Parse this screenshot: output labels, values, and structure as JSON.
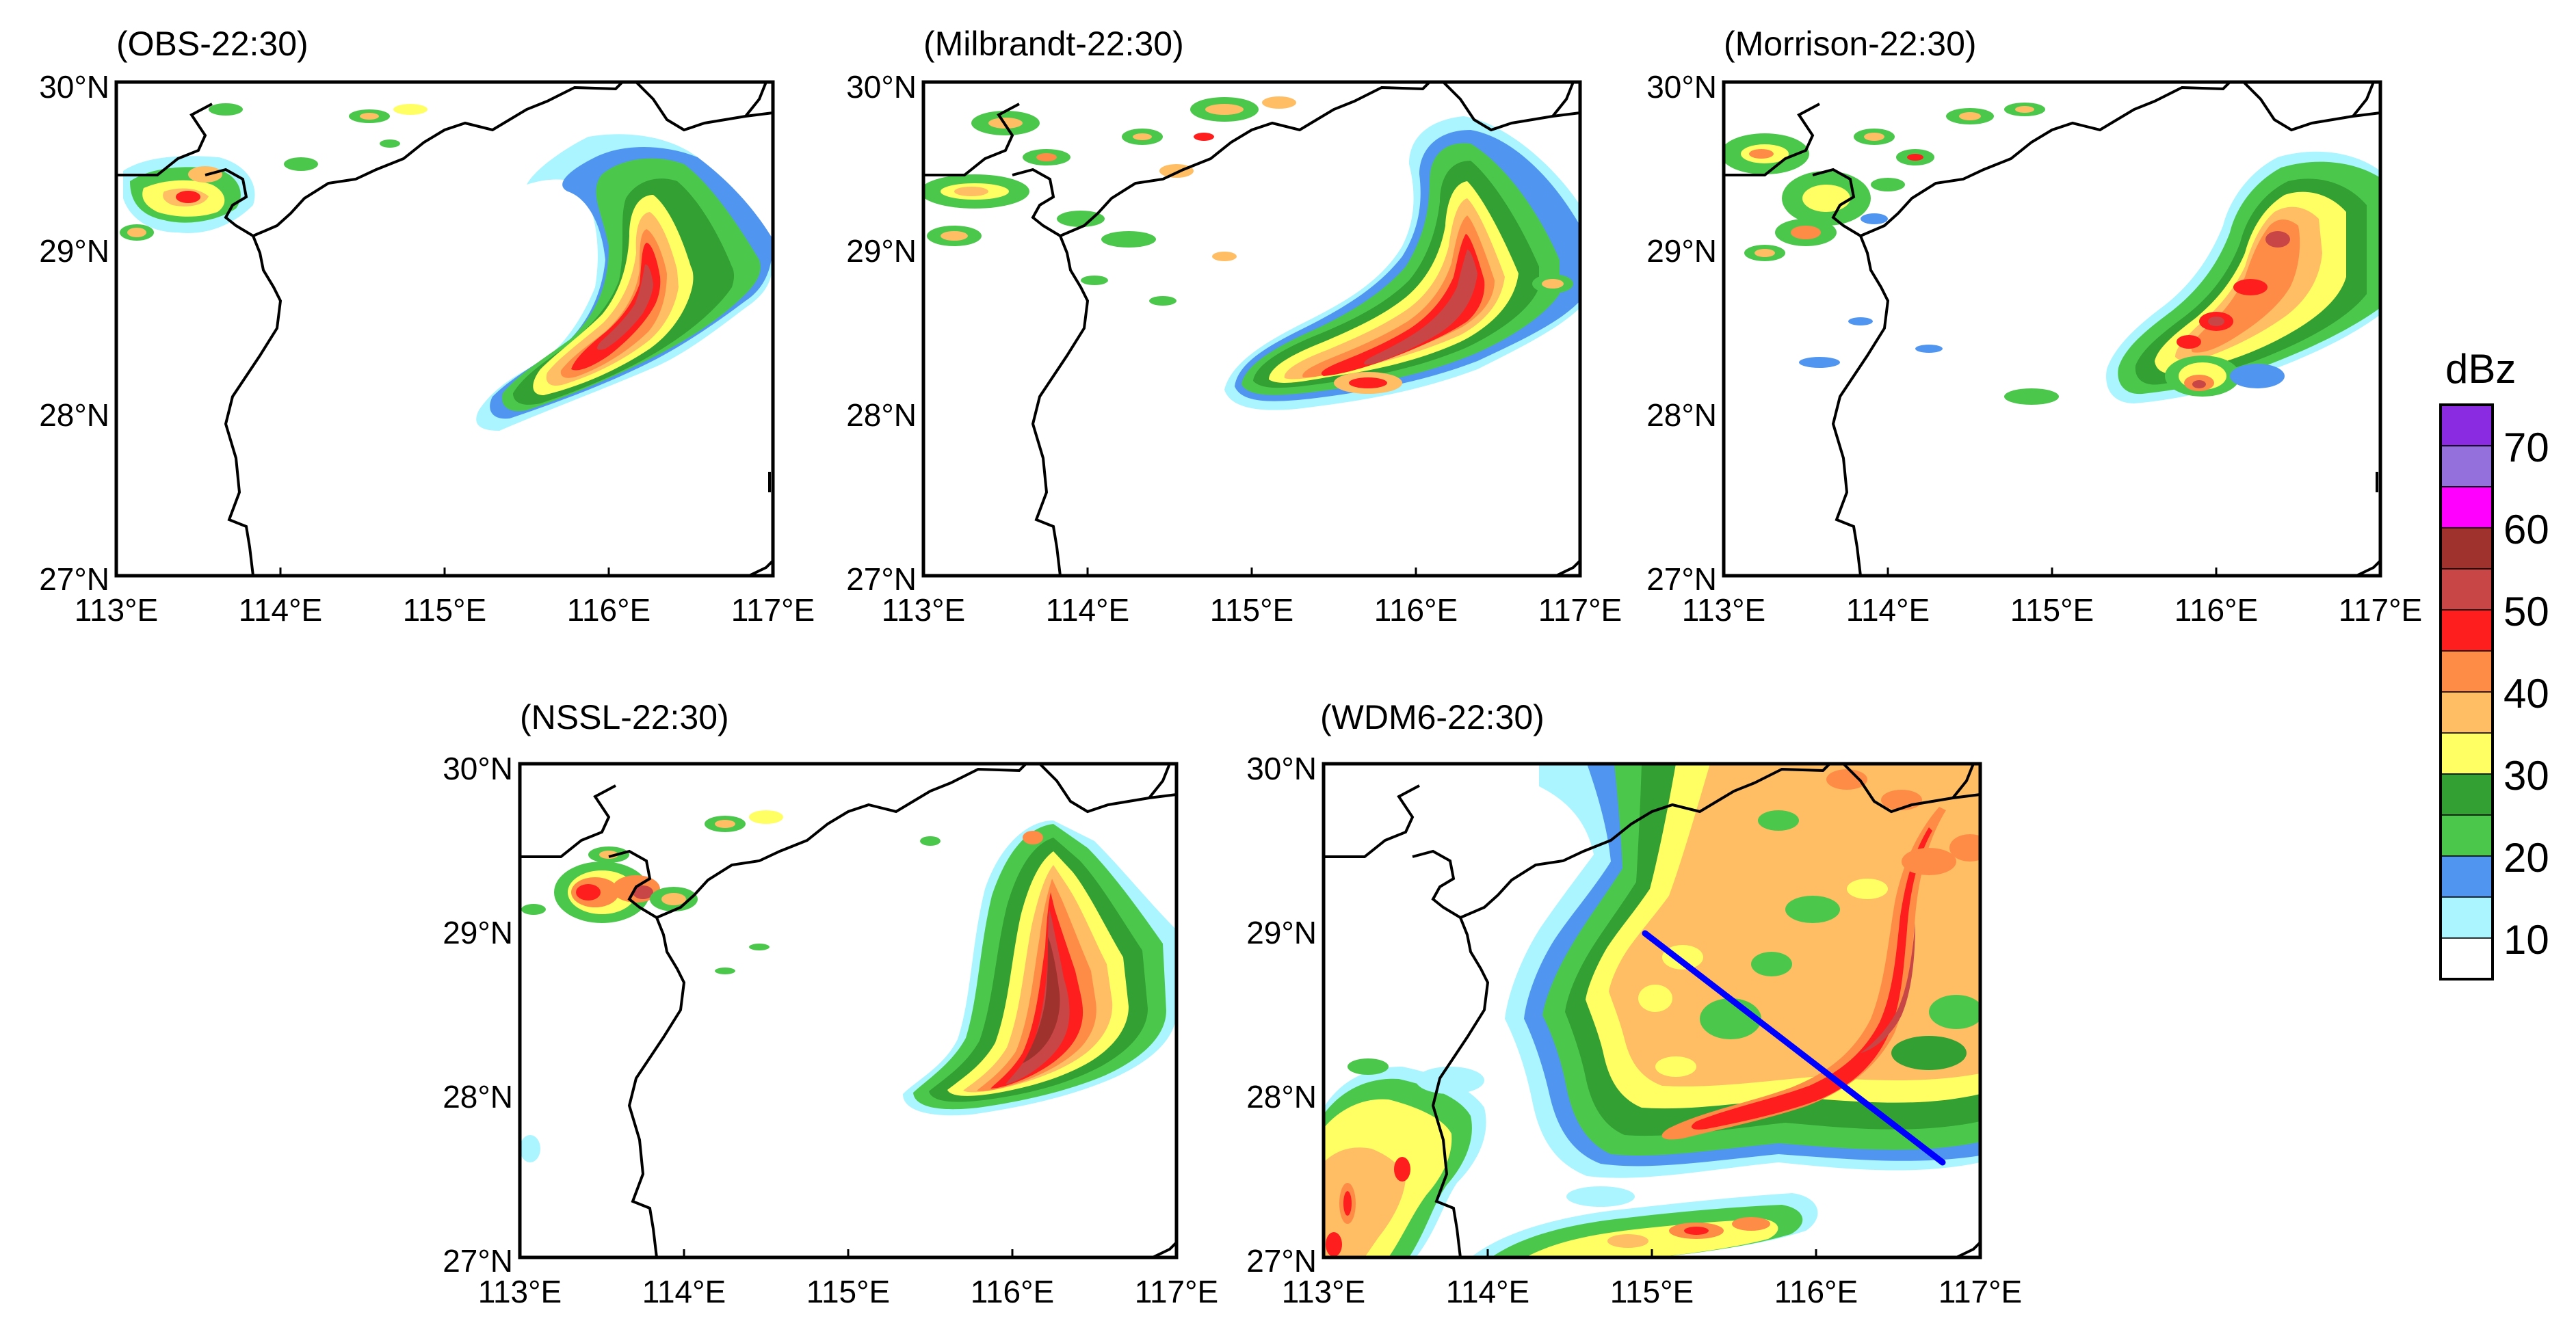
{
  "panels": [
    {
      "id": "obs",
      "title": "(OBS-22:30)"
    },
    {
      "id": "milbrandt",
      "title": "(Milbrandt-22:30)"
    },
    {
      "id": "morrison",
      "title": "(Morrison-22:30)"
    },
    {
      "id": "nssl",
      "title": "(NSSL-22:30)"
    },
    {
      "id": "wdm6",
      "title": "(WDM6-22:30)"
    }
  ],
  "axes": {
    "lat_ticks": [
      "30°N",
      "29°N",
      "28°N",
      "27°N"
    ],
    "lon_ticks": [
      "113°E",
      "114°E",
      "115°E",
      "116°E",
      "117°E"
    ]
  },
  "colorbar": {
    "title": "dBz",
    "labels": [
      "70",
      "60",
      "50",
      "40",
      "30",
      "20",
      "10"
    ],
    "colors": [
      "#8a2be2",
      "#9370db",
      "#ff00ff",
      "#a0322d",
      "#c84646",
      "#ff1e1e",
      "#ff8c46",
      "#ffbe64",
      "#ffff64",
      "#32a032",
      "#4bc84b",
      "#5096f0",
      "#aaf5ff",
      "#ffffff"
    ]
  },
  "palette": {
    "cyan": "#aaf5ff",
    "blue": "#5096f0",
    "lightgreen": "#4bc84b",
    "green": "#32a032",
    "yellow": "#ffff64",
    "orange": "#ffbe64",
    "darkorange": "#ff8c46",
    "red": "#ff1e1e",
    "darkred": "#c84646",
    "maroon": "#a0322d",
    "cross_section_line": "#0000ff"
  }
}
